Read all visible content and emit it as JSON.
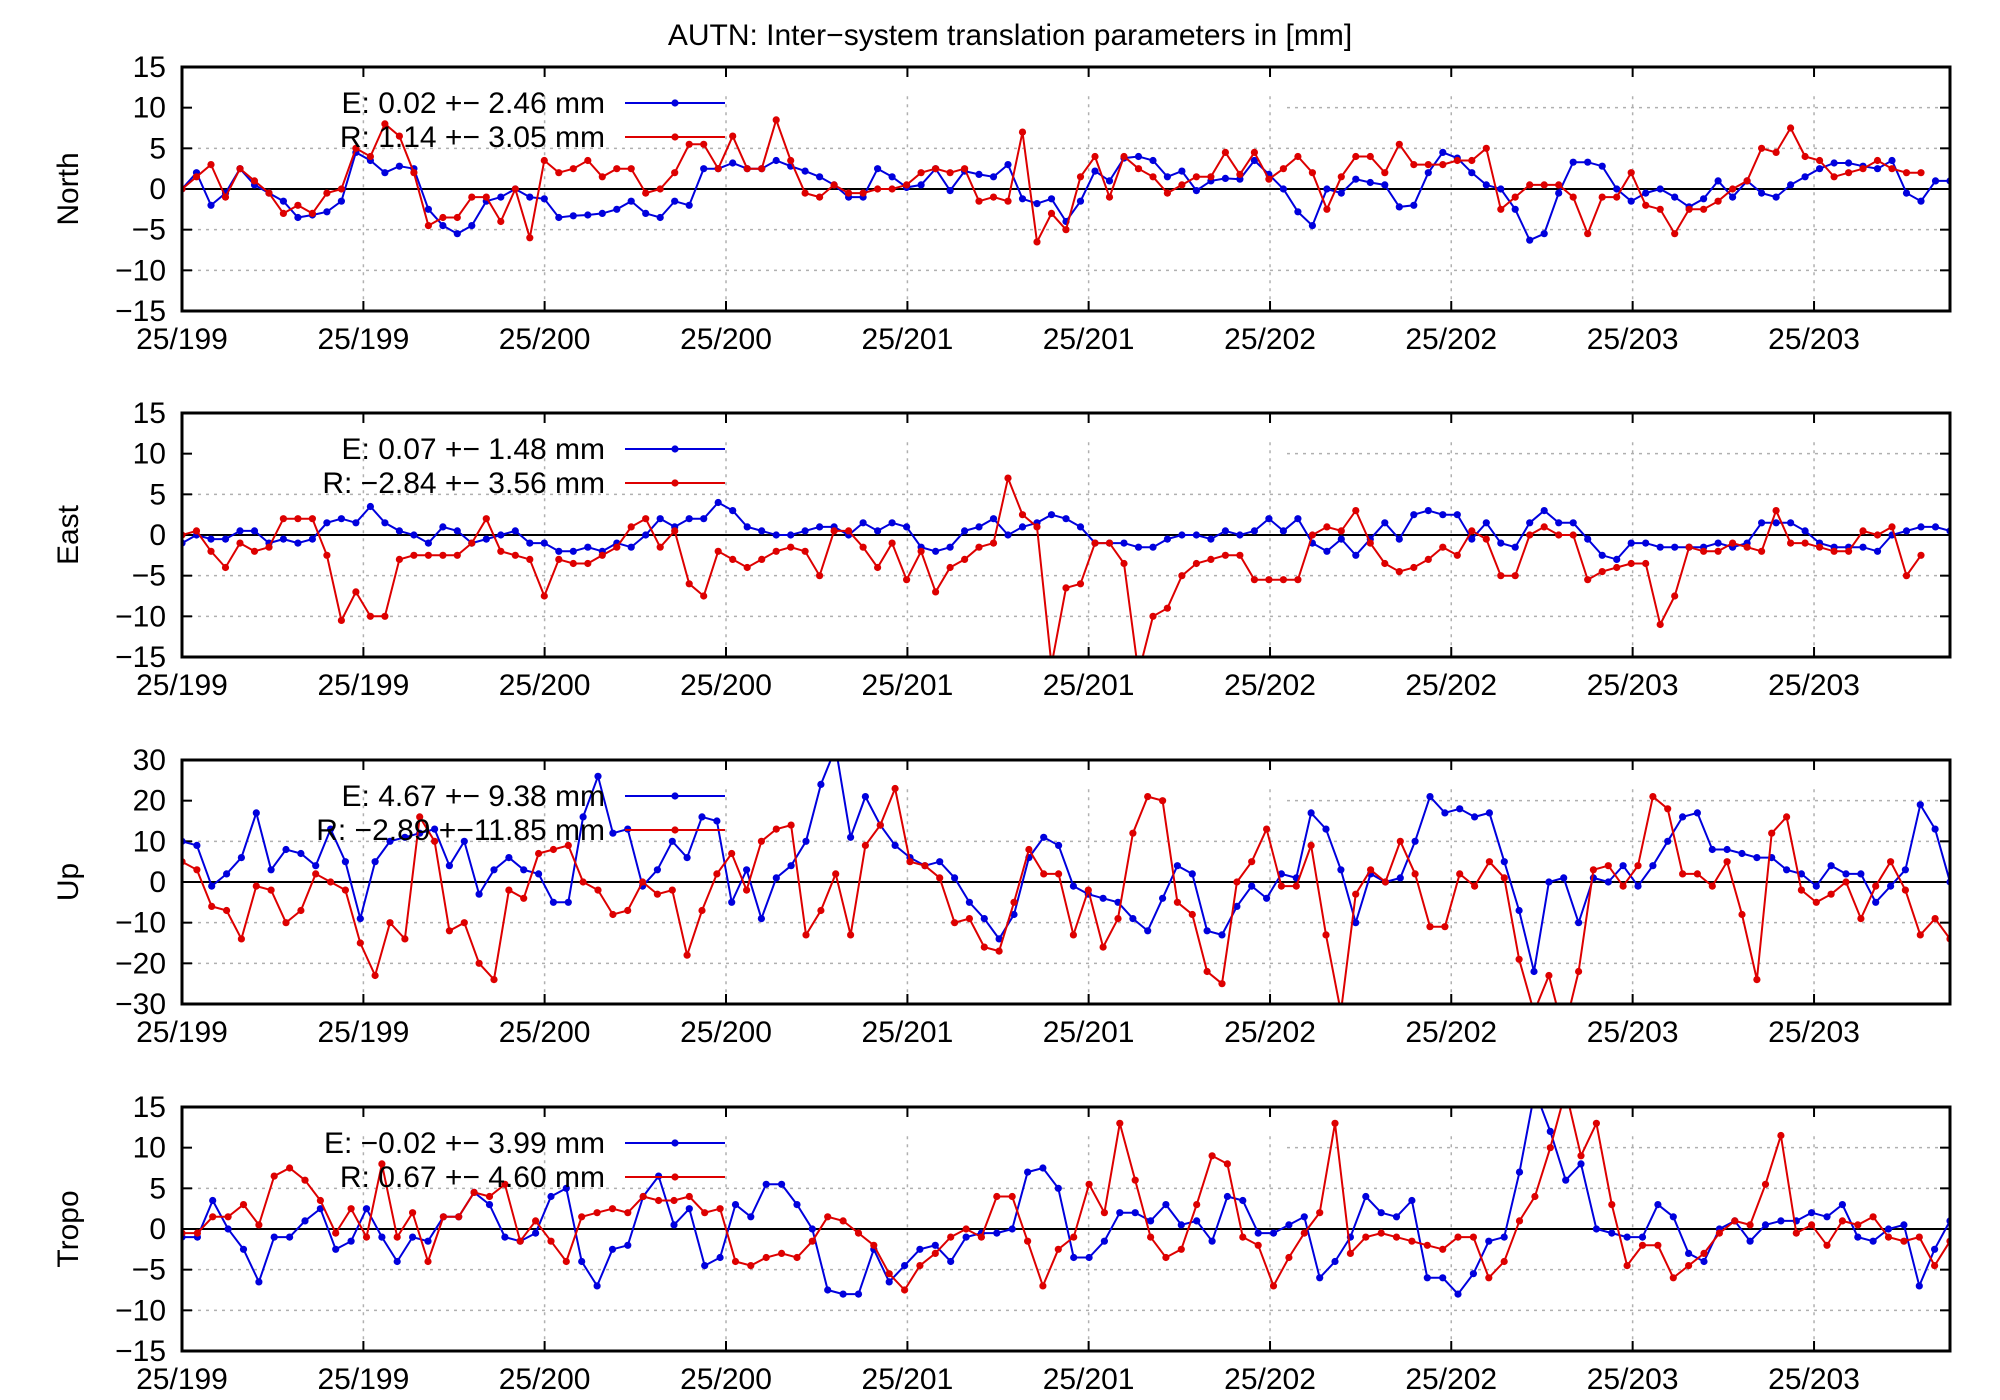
{
  "title": "AUTN: Inter−system translation parameters in [mm]",
  "colors": {
    "E": "#0000dd",
    "R": "#dd0000"
  },
  "x_tick_labels": [
    "25/199",
    "25/199",
    "25/200",
    "25/200",
    "25/201",
    "25/201",
    "25/202",
    "25/202",
    "25/203",
    "25/203"
  ],
  "chart_data": [
    {
      "type": "line",
      "ylabel": "North",
      "ylim": [
        -15,
        15
      ],
      "yticks": [
        15,
        10,
        5,
        0,
        -5,
        -10,
        -15
      ],
      "grid": true,
      "legend_position": "top-left",
      "series": [
        {
          "name": "E:   0.02 +− 2.46 mm",
          "key": "E",
          "values": [
            0,
            2,
            -2,
            -0.5,
            2.5,
            0.5,
            -0.5,
            -1.5,
            -3.5,
            -3.2,
            -2.8,
            -1.5,
            4.5,
            3.5,
            2,
            2.8,
            2.5,
            -2.5,
            -4.5,
            -5.5,
            -4.5,
            -1.5,
            -1,
            0,
            -1,
            -1.2,
            -3.5,
            -3.3,
            -3.2,
            -3,
            -2.5,
            -1.5,
            -3,
            -3.5,
            -1.5,
            -2,
            2.5,
            2.5,
            3.2,
            2.5,
            2.5,
            3.5,
            2.8,
            2.2,
            1.5,
            0.5,
            -1,
            -1,
            2.5,
            1.5,
            0.2,
            0.5,
            2.5,
            -0.2,
            2.2,
            1.8,
            1.5,
            3,
            -1.2,
            -1.8,
            -1.2,
            -4,
            -1.5,
            2.2,
            1,
            3.8,
            4,
            3.5,
            1.5,
            2.2,
            -0.2,
            1,
            1.3,
            1.2,
            3.5,
            1.8,
            0,
            -2.8,
            -4.5,
            0,
            -0.5,
            1.2,
            0.8,
            0.5,
            -2.2,
            -2,
            2,
            4.5,
            3.8,
            2,
            0.5,
            0,
            -2.5,
            -6.3,
            -5.5,
            -0.5,
            3.3,
            3.3,
            2.8,
            0,
            -1.5,
            -0.5,
            0,
            -1,
            -2.2,
            -1.2,
            1,
            -1,
            1,
            -0.5,
            -1,
            0.5,
            1.5,
            2.5,
            3.2,
            3.2,
            2.8,
            2.5,
            3.5,
            -0.5,
            -1.5,
            1,
            1
          ]
        },
        {
          "name": "R:   1.14 +− 3.05 mm",
          "key": "R",
          "values": [
            0,
            1.5,
            3,
            -1,
            2.5,
            1,
            -0.5,
            -3,
            -2,
            -3,
            -0.5,
            0,
            5,
            4,
            8,
            6.5,
            2,
            -4.5,
            -3.5,
            -3.5,
            -1,
            -1,
            -4,
            0,
            -6,
            3.5,
            2,
            2.5,
            3.5,
            1.5,
            2.5,
            2.5,
            -0.5,
            0,
            2,
            5.5,
            5.5,
            2.5,
            6.5,
            2.5,
            2.5,
            8.5,
            3.5,
            -0.5,
            -1,
            0.5,
            -0.5,
            -0.5,
            0,
            0,
            0.5,
            2,
            2.5,
            2,
            2.5,
            -1.5,
            -1,
            -1.5,
            7,
            -6.5,
            -3,
            -5,
            1.5,
            4,
            -1,
            4,
            2.5,
            1.5,
            -0.5,
            0.5,
            1.5,
            1.5,
            4.5,
            1.8,
            4.5,
            1.2,
            2.5,
            4,
            2,
            -2.5,
            1.5,
            4,
            4,
            2,
            5.5,
            3,
            3,
            3,
            3.5,
            3.5,
            5,
            -2.5,
            -1,
            0.5,
            0.5,
            0.5,
            -1,
            -5.5,
            -1,
            -1,
            2,
            -2,
            -2.5,
            -5.5,
            -2.5,
            -2.5,
            -1.5,
            0,
            1,
            5,
            4.5,
            7.5,
            4,
            3.5,
            1.5,
            2,
            2.5,
            3.5,
            2.5,
            2,
            2
          ]
        }
      ]
    },
    {
      "type": "line",
      "ylabel": "East",
      "ylim": [
        -15,
        15
      ],
      "yticks": [
        15,
        10,
        5,
        0,
        -5,
        -10,
        -15
      ],
      "grid": true,
      "legend_position": "top-left",
      "series": [
        {
          "name": "E:   0.07 +− 1.48 mm",
          "key": "E",
          "values": [
            -1,
            0,
            -0.5,
            -0.5,
            0.5,
            0.5,
            -1,
            -0.5,
            -1,
            -0.5,
            1.5,
            2,
            1.5,
            3.5,
            1.5,
            0.5,
            0,
            -1,
            1,
            0.5,
            -1,
            -0.5,
            0,
            0.5,
            -1,
            -1,
            -2,
            -2,
            -1.5,
            -2,
            -1,
            -1.5,
            0,
            2,
            1,
            2,
            2,
            4,
            3,
            1,
            0.5,
            0,
            0,
            0.5,
            1,
            1,
            0,
            1.5,
            0.5,
            1.5,
            1,
            -1.5,
            -2,
            -1.5,
            0.5,
            1,
            2,
            0,
            1,
            1.5,
            2.5,
            2,
            1,
            -1,
            -1,
            -1,
            -1.5,
            -1.5,
            -0.5,
            0,
            0,
            -0.5,
            0.5,
            0,
            0.5,
            2,
            0.5,
            2,
            -1,
            -2,
            -0.5,
            -2.5,
            -0.5,
            1.5,
            -0.5,
            2.5,
            3,
            2.5,
            2.5,
            -0.5,
            1.5,
            -1,
            -1.5,
            1.5,
            3,
            1.5,
            1.5,
            -0.5,
            -2.5,
            -3,
            -1,
            -1,
            -1.5,
            -1.5,
            -1.5,
            -1.5,
            -1,
            -1.5,
            -1,
            1.5,
            1.5,
            1.5,
            0.5,
            -1,
            -1.5,
            -1.5,
            -1.5,
            -2,
            0,
            0.5,
            1,
            1,
            0.5
          ]
        },
        {
          "name": "R:  −2.84 +− 3.56 mm",
          "key": "R",
          "values": [
            0,
            0.5,
            -2,
            -4,
            -1,
            -2,
            -1.5,
            2,
            2,
            2,
            -2.5,
            -10.5,
            -7,
            -10,
            -10,
            -3,
            -2.5,
            -2.5,
            -2.5,
            -2.5,
            -1,
            2,
            -2,
            -2.5,
            -3,
            -7.5,
            -3,
            -3.5,
            -3.5,
            -2.5,
            -1.5,
            1,
            2,
            -1.5,
            0.5,
            -6,
            -7.5,
            -2,
            -3,
            -4,
            -3,
            -2,
            -1.5,
            -2,
            -5,
            0.5,
            0.5,
            -1.5,
            -4,
            -1,
            -5.5,
            -2,
            -7,
            -4,
            -3,
            -1.5,
            -1,
            7,
            2.5,
            1,
            -16,
            -6.5,
            -6,
            -1,
            -1,
            -3.5,
            -17,
            -10,
            -9,
            -5,
            -3.5,
            -3,
            -2.5,
            -2.5,
            -5.5,
            -5.5,
            -5.5,
            -5.5,
            0,
            1,
            0.5,
            3,
            -1,
            -3.5,
            -4.5,
            -4,
            -3,
            -1.5,
            -2.5,
            0.5,
            -0.5,
            -5,
            -5,
            0,
            1,
            0,
            0,
            -5.5,
            -4.5,
            -4,
            -3.5,
            -3.5,
            -11,
            -7.5,
            -1.5,
            -2,
            -2,
            -1,
            -1.5,
            -2,
            3,
            -1,
            -1,
            -1.5,
            -2,
            -2,
            0.5,
            0,
            1,
            -5,
            -2.5
          ]
        }
      ]
    },
    {
      "type": "line",
      "ylabel": "Up",
      "ylim": [
        -30,
        30
      ],
      "yticks": [
        30,
        20,
        10,
        0,
        -10,
        -20,
        -30
      ],
      "grid": true,
      "legend_position": "top-left",
      "series": [
        {
          "name": "E:   4.67 +− 9.38 mm",
          "key": "E",
          "values": [
            10,
            9,
            -1,
            2,
            6,
            17,
            3,
            8,
            7,
            4,
            13,
            5,
            -9,
            5,
            10,
            11,
            12,
            13,
            4,
            10,
            -3,
            3,
            6,
            3,
            2,
            -5,
            -5,
            16,
            26,
            12,
            13,
            -1,
            3,
            10,
            6,
            16,
            15,
            -5,
            3,
            -9,
            1,
            4,
            10,
            24,
            33,
            11,
            21,
            14,
            9,
            6,
            4,
            5,
            1,
            -5,
            -9,
            -14,
            -8,
            6,
            11,
            9,
            -1,
            -3,
            -4,
            -5,
            -9,
            -12,
            -4,
            4,
            2,
            -12,
            -13,
            -6,
            -1,
            -4,
            2,
            1,
            17,
            13,
            3,
            -10,
            2,
            0,
            1,
            10,
            21,
            17,
            18,
            16,
            17,
            5,
            -7,
            -22,
            0,
            1,
            -10,
            1,
            0,
            4,
            -1,
            4,
            10,
            16,
            17,
            8,
            8,
            7,
            6,
            6,
            3,
            2,
            -1,
            4,
            2,
            2,
            -5,
            -1,
            3,
            19,
            13,
            0
          ]
        },
        {
          "name": "R:  −2.89 +−11.85 mm",
          "key": "R",
          "values": [
            5,
            3,
            -6,
            -7,
            -14,
            -1,
            -2,
            -10,
            -7,
            2,
            0,
            -2,
            -15,
            -23,
            -10,
            -14,
            16,
            10,
            -12,
            -10,
            -20,
            -24,
            -2,
            -4,
            7,
            8,
            9,
            0,
            -2,
            -8,
            -7,
            0,
            -3,
            -2,
            -18,
            -7,
            2,
            7,
            -2,
            10,
            13,
            14,
            -13,
            -7,
            2,
            -13,
            9,
            14,
            23,
            5,
            4,
            1,
            -10,
            -9,
            -16,
            -17,
            -5,
            8,
            2,
            2,
            -13,
            -2,
            -16,
            -9,
            12,
            21,
            20,
            -5,
            -8,
            -22,
            -25,
            0,
            5,
            13,
            -1,
            -1,
            9,
            -13,
            -32,
            -3,
            3,
            0,
            10,
            2,
            -11,
            -11,
            2,
            -1,
            5,
            1,
            -19,
            -32,
            -23,
            -37,
            -22,
            3,
            4,
            -1,
            4,
            21,
            18,
            2,
            2,
            -1,
            5,
            -8,
            -24,
            12,
            16,
            -2,
            -5,
            -3,
            0,
            -9,
            -1,
            5,
            -2,
            -13,
            -9,
            -14,
            -12
          ]
        }
      ]
    },
    {
      "type": "line",
      "ylabel": "Tropo",
      "ylim": [
        -15,
        15
      ],
      "yticks": [
        15,
        10,
        5,
        0,
        -5,
        -10,
        -15
      ],
      "grid": true,
      "legend_position": "top-left",
      "series": [
        {
          "name": "E:  −0.02 +− 3.99 mm",
          "key": "E",
          "values": [
            -1,
            -1,
            3.5,
            0,
            -2.5,
            -6.5,
            -1,
            -1,
            1,
            2.5,
            -2.5,
            -1.5,
            2.5,
            -1,
            -4,
            -1,
            -1.5,
            1.5,
            1.5,
            4.5,
            3,
            -1,
            -1.5,
            -0.5,
            4,
            5,
            -4,
            -7,
            -2.5,
            -2,
            4,
            6.5,
            0.5,
            2.5,
            -4.5,
            -3.5,
            3,
            1.5,
            5.5,
            5.5,
            3,
            0,
            -7.5,
            -8,
            -8,
            -2.5,
            -6.5,
            -4.5,
            -2.5,
            -2,
            -4,
            -1,
            -0.5,
            -0.5,
            0,
            7,
            7.5,
            5,
            -3.5,
            -3.5,
            -1.5,
            2,
            2,
            1,
            3,
            0.5,
            1,
            -1.5,
            4,
            3.5,
            -0.5,
            -0.5,
            0.5,
            1.5,
            -6,
            -4,
            -1,
            4,
            2,
            1.5,
            3.5,
            -6,
            -6,
            -8,
            -5.5,
            -1.5,
            -1,
            7,
            17,
            12,
            6,
            8,
            0,
            -0.5,
            -1,
            -1,
            3,
            1.5,
            -3,
            -4,
            0,
            1,
            -1.5,
            0.5,
            1,
            1,
            2,
            1.5,
            3,
            -1,
            -1.5,
            0,
            0.5,
            -7,
            -2.5,
            1
          ]
        },
        {
          "name": "R:   0.67 +− 4.60 mm",
          "key": "R",
          "values": [
            -0.5,
            -0.5,
            1.5,
            1.5,
            3,
            0.5,
            6.5,
            7.5,
            6,
            3.5,
            -0.5,
            2.5,
            -1,
            8,
            -1,
            2,
            -4,
            1.5,
            1.5,
            4.5,
            4,
            5.5,
            -1.5,
            1,
            -1.5,
            -4,
            1.5,
            2,
            2.5,
            2,
            4,
            3.5,
            3.5,
            4,
            2,
            2.5,
            -4,
            -4.5,
            -3.5,
            -3,
            -3.5,
            -1.5,
            1.5,
            1,
            -0.5,
            -2,
            -5.5,
            -7.5,
            -4.5,
            -3,
            -1,
            0,
            -1,
            4,
            4,
            -1.5,
            -7,
            -2.5,
            -1,
            5.5,
            2,
            13,
            6,
            -1,
            -3.5,
            -2.5,
            3,
            9,
            8,
            -1,
            -2,
            -7,
            -3.5,
            -0.5,
            2,
            13,
            -3,
            -1,
            -0.5,
            -1,
            -1.5,
            -2,
            -2.5,
            -1,
            -1,
            -6,
            -4,
            1,
            4,
            10,
            17,
            9,
            13,
            3,
            -4.5,
            -2,
            -2,
            -6,
            -4.5,
            -3,
            -0.5,
            1,
            0.5,
            5.5,
            11.5,
            -0.5,
            0.5,
            -2,
            1,
            0.5,
            1.5,
            -1,
            -1.5,
            -1,
            -4.5,
            -1.5,
            2,
            -1,
            -1.5,
            0
          ]
        }
      ]
    }
  ]
}
